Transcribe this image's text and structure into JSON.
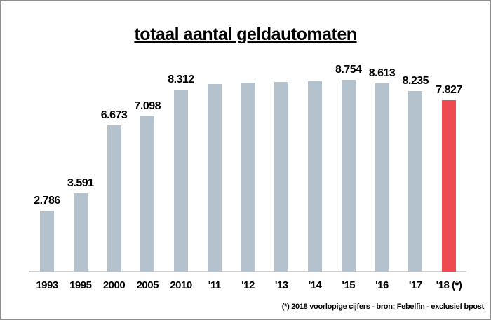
{
  "chart_data": {
    "type": "bar",
    "title": "totaal aantal geldautomaten",
    "categories": [
      "1993",
      "1995",
      "2000",
      "2005",
      "2010",
      "'11",
      "'12",
      "'13",
      "'14",
      "'15",
      "'16",
      "'17",
      "'18 (*)"
    ],
    "values": [
      2786,
      3591,
      6673,
      7098,
      8312,
      8570,
      8650,
      8660,
      8700,
      8754,
      8613,
      8235,
      7827
    ],
    "data_labels": [
      "2.786",
      "3.591",
      "6.673",
      "7.098",
      "8.312",
      "",
      "",
      "",
      "",
      "8.754",
      "8.613",
      "8.235",
      "7.827"
    ],
    "highlight_index": 12,
    "bar_color": "#b4c2ce",
    "highlight_color": "#ee4a52",
    "axis_line_color": "#cfcfcf",
    "footnote": "(*) 2018 voorlopige cijfers - bron: Febelfin - exclusief bpost",
    "xlabel": "",
    "ylabel": "",
    "ylim": [
      0,
      9000
    ],
    "grid": false,
    "legend": false
  }
}
